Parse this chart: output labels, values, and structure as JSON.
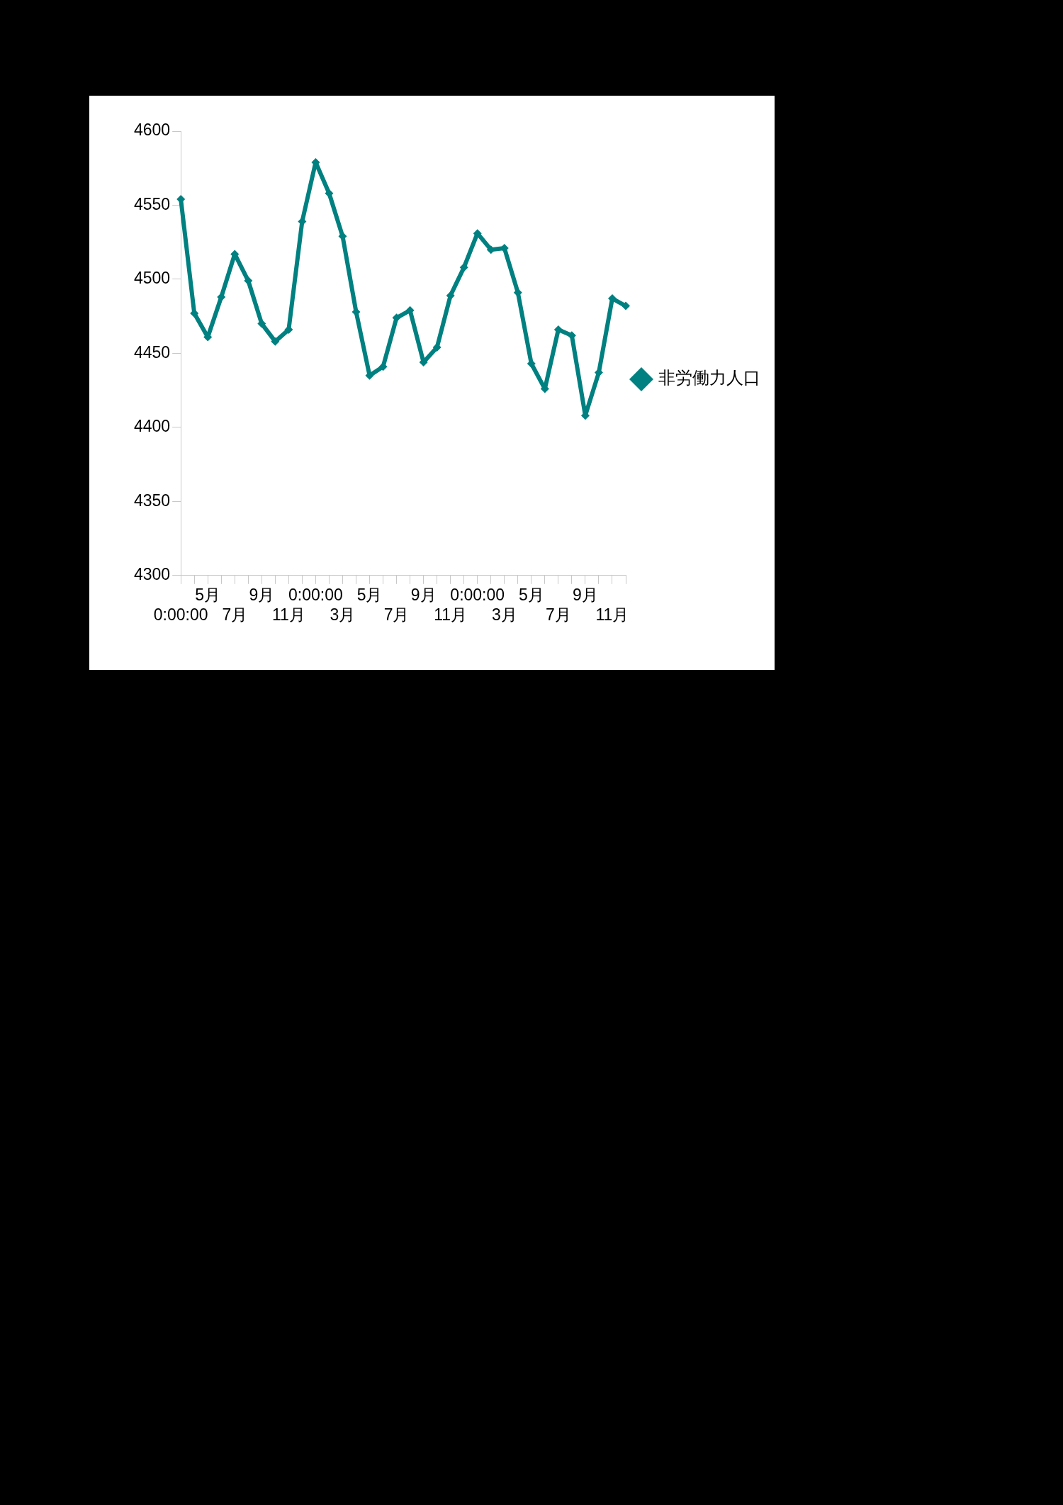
{
  "chart_data": {
    "type": "line",
    "categories": [
      "0:00:00",
      null,
      "5月",
      null,
      "7月",
      null,
      "9月",
      null,
      "11月",
      null,
      "0:00:00",
      null,
      "3月",
      null,
      "5月",
      null,
      "7月",
      null,
      "9月",
      null,
      "11月",
      null,
      "0:00:00",
      null,
      "3月",
      null,
      "5月",
      null,
      "7月",
      null,
      "9月",
      null,
      "11月",
      null
    ],
    "series": [
      {
        "name": "非労働力人口",
        "color": "#008080",
        "values": [
          4554,
          4477,
          4461,
          4488,
          4517,
          4499,
          4470,
          4458,
          4466,
          4539,
          4579,
          4558,
          4529,
          4478,
          4435,
          4441,
          4474,
          4479,
          4444,
          4454,
          4489,
          4508,
          4531,
          4520,
          4521,
          4491,
          4443,
          4426,
          4466,
          4462,
          4408,
          4437,
          4487,
          4482
        ]
      }
    ],
    "ylim": [
      4300,
      4600
    ],
    "yticks": [
      4300,
      4350,
      4400,
      4450,
      4500,
      4550,
      4600
    ],
    "legend": "right",
    "marker": "diamond",
    "line_style": "solid"
  }
}
